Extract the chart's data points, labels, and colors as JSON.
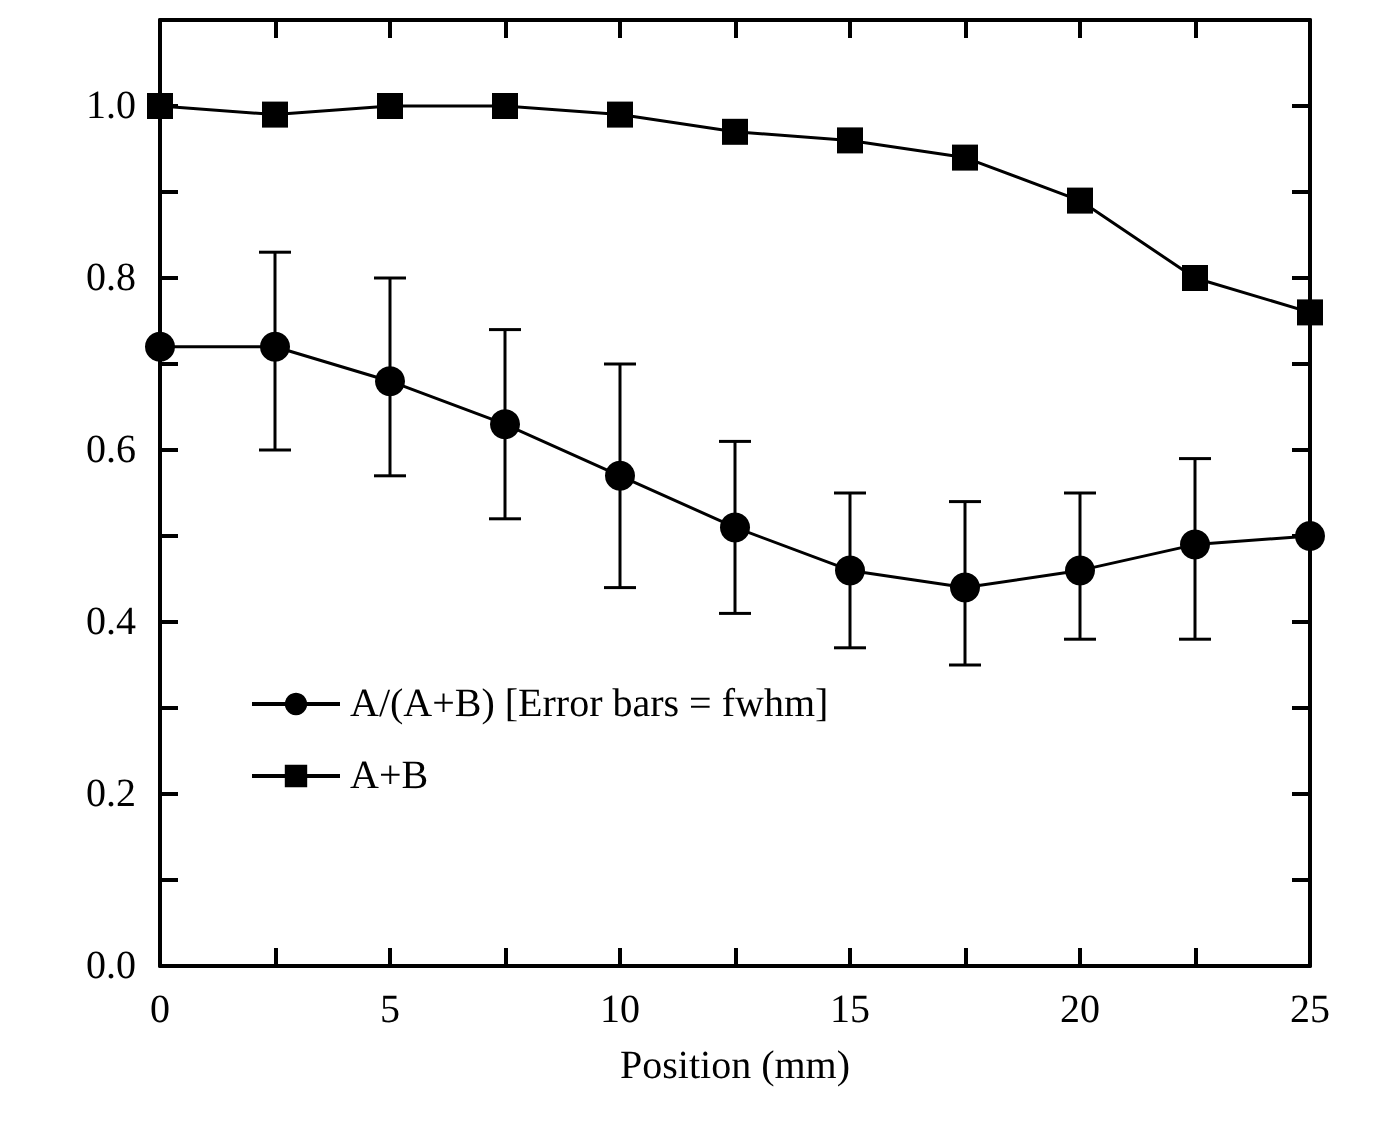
{
  "chart_data": {
    "type": "line",
    "xlabel": "Position (mm)",
    "x": [
      0,
      2.5,
      5,
      7.5,
      10,
      12.5,
      15,
      17.5,
      20,
      22.5,
      25
    ],
    "series": [
      {
        "name": "A/(A+B) [Error bars = fwhm]",
        "color": "#000000",
        "marker": "circle",
        "values": [
          0.72,
          0.72,
          0.68,
          0.63,
          0.57,
          0.51,
          0.46,
          0.44,
          0.46,
          0.49,
          0.5
        ],
        "errors": [
          null,
          [
            0.6,
            0.83
          ],
          [
            0.57,
            0.8
          ],
          [
            0.52,
            0.74
          ],
          [
            0.44,
            0.7
          ],
          [
            0.41,
            0.61
          ],
          [
            0.37,
            0.55
          ],
          [
            0.35,
            0.54
          ],
          [
            0.38,
            0.55
          ],
          [
            0.38,
            0.59
          ],
          null
        ]
      },
      {
        "name": "A+B",
        "color": "#000000",
        "marker": "square",
        "values": [
          1.0,
          0.99,
          1.0,
          1.0,
          0.99,
          0.97,
          0.96,
          0.94,
          0.89,
          0.8,
          0.76
        ]
      }
    ],
    "xlim": [
      0,
      25
    ],
    "xticks": [
      0,
      {
        "value": 2.5,
        "label": null
      },
      5,
      {
        "value": 7.5,
        "label": null
      },
      10,
      {
        "value": 12.5,
        "label": null
      },
      15,
      {
        "value": 17.5,
        "label": null
      },
      20,
      {
        "value": 22.5,
        "label": null
      },
      25
    ],
    "ylim": [
      0,
      1.1
    ],
    "yticks": [
      {
        "value": 0,
        "label": "0.0"
      },
      {
        "value": 0.1,
        "label": null
      },
      {
        "value": 0.2,
        "label": "0.2"
      },
      {
        "value": 0.3,
        "label": null
      },
      {
        "value": 0.4,
        "label": "0.4"
      },
      {
        "value": 0.5,
        "label": null
      },
      {
        "value": 0.6,
        "label": "0.6"
      },
      {
        "value": 0.7,
        "label": null
      },
      {
        "value": 0.8,
        "label": "0.8"
      },
      {
        "value": 0.9,
        "label": null
      },
      {
        "value": 1.0,
        "label": "1.0"
      }
    ],
    "grid": false,
    "legend": "bottom left",
    "line_style": "solid"
  }
}
